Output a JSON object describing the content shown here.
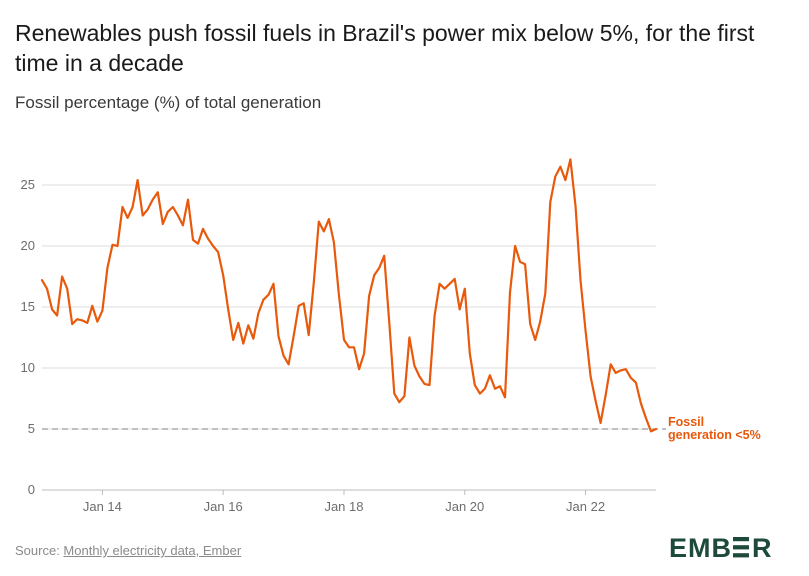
{
  "header": {
    "title": "Renewables push fossil fuels in Brazil's power mix below 5%, for the first time in a decade",
    "subtitle": "Fossil percentage (%) of total generation"
  },
  "footer": {
    "source_prefix": "Source: ",
    "source_link": "Monthly electricity data, Ember",
    "logo_text": "EMBER"
  },
  "colors": {
    "line": "#e8590c",
    "grid": "#dddddd",
    "threshold": "#9a9a9a",
    "logo": "#1d4a3a"
  },
  "chart_data": {
    "type": "line",
    "x_start": "2013-01",
    "x_end": "2023-03",
    "ylim": [
      0,
      27
    ],
    "y_ticks": [
      0,
      5,
      10,
      15,
      20,
      25
    ],
    "x_ticks": [
      {
        "label": "Jan 14",
        "date": "2014-01"
      },
      {
        "label": "Jan 16",
        "date": "2016-01"
      },
      {
        "label": "Jan 18",
        "date": "2018-01"
      },
      {
        "label": "Jan 20",
        "date": "2020-01"
      },
      {
        "label": "Jan 22",
        "date": "2022-01"
      }
    ],
    "grid": true,
    "threshold": 5,
    "annotation": [
      "Fossil",
      "generation <5%"
    ],
    "series": [
      {
        "values": [
          17.2,
          16.5,
          14.8,
          14.3,
          17.5,
          16.5,
          13.6,
          14.0,
          13.9,
          13.7,
          15.1,
          13.8,
          14.7,
          18.2,
          20.1,
          20.0,
          23.2,
          22.3,
          23.2,
          25.4,
          22.5,
          23.0,
          23.8,
          24.4,
          21.8,
          22.8,
          23.2,
          22.5,
          21.7,
          23.8,
          20.5,
          20.2,
          21.4,
          20.6,
          20.0,
          19.5,
          17.6,
          14.8,
          12.3,
          13.7,
          12.0,
          13.5,
          12.4,
          14.5,
          15.6,
          16.0,
          16.9,
          12.6,
          11.0,
          10.3,
          12.6,
          15.1,
          15.3,
          12.7,
          17.0,
          22.0,
          21.2,
          22.2,
          20.3,
          16.0,
          12.3,
          11.7,
          11.7,
          9.9,
          11.2,
          15.9,
          17.6,
          18.2,
          19.2,
          13.7,
          7.9,
          7.2,
          7.7,
          12.5,
          10.2,
          9.3,
          8.7,
          8.6,
          14.3,
          16.9,
          16.5,
          16.9,
          17.3,
          14.8,
          16.5,
          11.2,
          8.6,
          7.9,
          8.3,
          9.4,
          8.3,
          8.5,
          7.6,
          16.2,
          20.0,
          18.7,
          18.5,
          13.6,
          12.3,
          13.8,
          16.1,
          23.6,
          25.7,
          26.5,
          25.4,
          27.1,
          23.3,
          17.2,
          13.1,
          9.3,
          7.3,
          5.5,
          7.8,
          10.3,
          9.6,
          9.8,
          9.9,
          9.2,
          8.8,
          7.1,
          5.9,
          4.8,
          5.0
        ]
      }
    ]
  }
}
